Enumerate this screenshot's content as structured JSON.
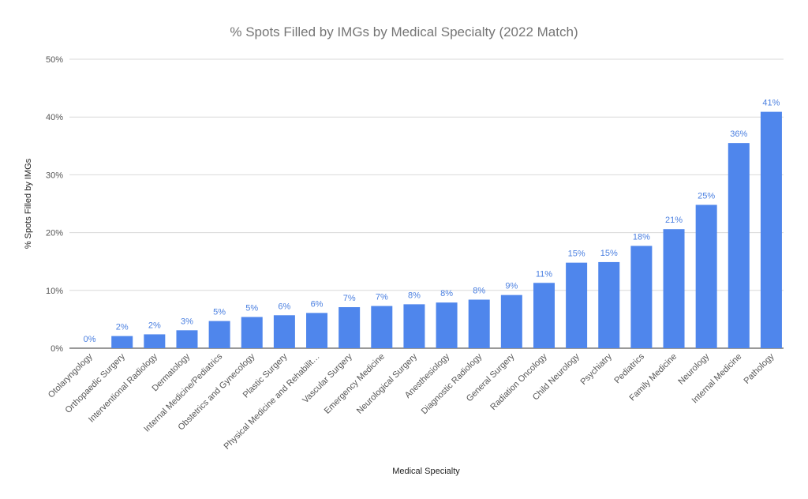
{
  "chart_data": {
    "type": "bar",
    "title": "% Spots Filled by IMGs by Medical Specialty (2022 Match)",
    "xlabel": "Medical Specialty",
    "ylabel": "% Spots Filled by IMGs",
    "ylim": [
      0,
      50
    ],
    "yticks": [
      "0%",
      "10%",
      "20%",
      "30%",
      "40%",
      "50%"
    ],
    "grid": true,
    "legend": "none",
    "bar_color": "#4f86ec",
    "categories": [
      "Otolaryngology",
      "Orthopaedic Surgery",
      "Interventional Radiology",
      "Dermatology",
      "Internal Medicine/Pediatrics",
      "Obstetrics and Gynecology",
      "Plastic Surgery",
      "Physical Medicine and Rehabilit…",
      "Vascular Surgery",
      "Emergency Medicine",
      "Neurological Surgery",
      "Anesthesiology",
      "Diagnostic Radiology",
      "General Surgery",
      "Radiation Oncology",
      "Child Neurology",
      "Psychiatry",
      "Pediatrics",
      "Family Medicine",
      "Neurology",
      "Internal Medicine",
      "Pathology"
    ],
    "values": [
      0,
      2.1,
      2.4,
      3.1,
      4.7,
      5.4,
      5.7,
      6.1,
      7.1,
      7.3,
      7.6,
      7.9,
      8.4,
      9.2,
      11.3,
      14.8,
      14.9,
      17.7,
      20.6,
      24.8,
      35.5,
      40.9
    ],
    "data_labels": [
      "0%",
      "2%",
      "2%",
      "3%",
      "5%",
      "5%",
      "6%",
      "6%",
      "7%",
      "7%",
      "8%",
      "8%",
      "8%",
      "9%",
      "11%",
      "15%",
      "15%",
      "18%",
      "21%",
      "25%",
      "36%",
      "41%"
    ]
  }
}
